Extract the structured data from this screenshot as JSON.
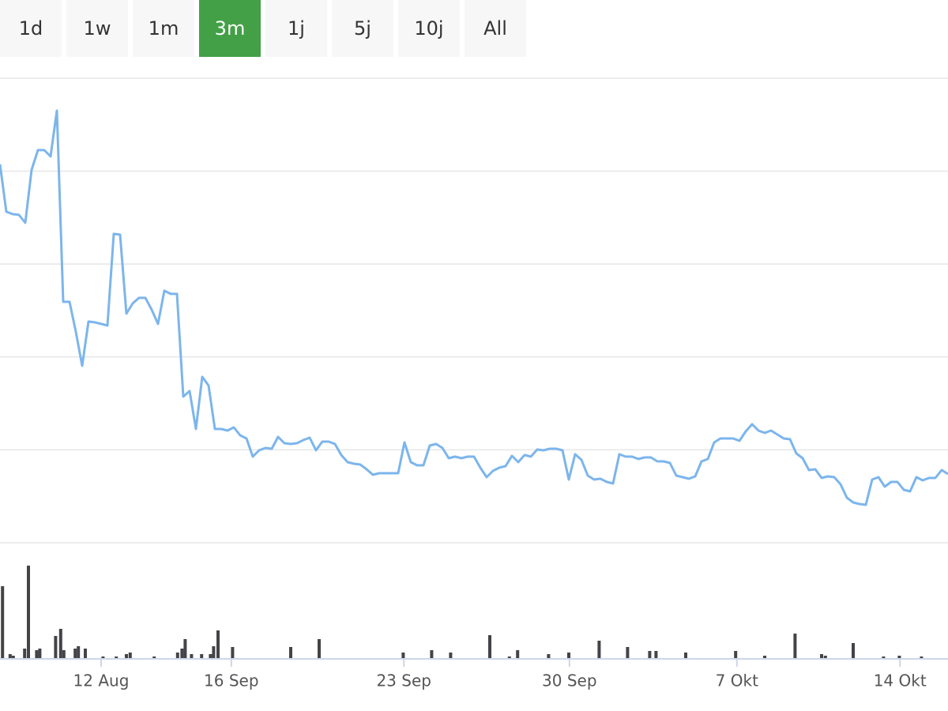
{
  "buttons": [
    "1d",
    "1w",
    "1m",
    "3m",
    "1j",
    "5j",
    "10j",
    "All"
  ],
  "selected_index": 3,
  "chart_data": [
    {
      "type": "line",
      "color": "#7cb5ec",
      "grid": true,
      "ytick_labels": false,
      "xlim": [
        0,
        150
      ],
      "ylim": [
        0,
        588
      ],
      "yticks": [
        0,
        117.6,
        235.2,
        352.8,
        470.4,
        588
      ],
      "values": [
        479,
        419,
        416,
        415,
        405,
        472,
        497,
        497,
        489,
        547,
        305,
        305,
        267,
        224,
        280,
        279,
        277,
        275,
        391,
        390,
        290,
        303,
        310,
        310,
        295,
        277,
        319,
        315,
        315,
        185,
        192,
        144,
        210,
        199,
        144,
        144,
        142,
        146,
        136,
        132,
        109,
        117,
        120,
        119,
        134,
        126,
        125,
        126,
        130,
        133,
        117,
        128,
        128,
        125,
        111,
        102,
        100,
        99,
        93,
        86,
        88,
        88,
        88,
        88,
        127,
        102,
        98,
        98,
        123,
        125,
        120,
        107,
        109,
        107,
        109,
        109,
        95,
        83,
        91,
        95,
        97,
        110,
        102,
        111,
        109,
        118,
        117,
        119,
        119,
        117,
        80,
        112,
        105,
        85,
        80,
        81,
        77,
        75,
        112,
        109,
        109,
        106,
        108,
        108,
        103,
        103,
        101,
        85,
        83,
        81,
        84,
        103,
        106,
        127,
        132,
        132,
        132,
        129,
        141,
        150,
        142,
        139,
        142,
        137,
        132,
        131,
        113,
        107,
        92,
        93,
        82,
        84,
        83,
        74,
        57,
        51,
        49,
        48,
        80,
        83,
        71,
        77,
        77,
        67,
        65,
        83,
        79,
        82,
        82,
        92,
        87
      ]
    },
    {
      "type": "bar",
      "color": "#434348",
      "xlim": [
        0,
        150
      ],
      "ylim": [
        0,
        120
      ],
      "x": [
        0.4,
        1.6,
        2.1,
        3.9,
        4.5,
        5.8,
        6.3,
        8.8,
        9.6,
        10.1,
        11.9,
        12.4,
        13.5,
        16.3,
        18.4,
        20,
        20.6,
        24.4,
        28.1,
        28.8,
        29.3,
        30.3,
        31.9,
        33.3,
        33.8,
        34.5,
        36.8,
        46,
        50.5,
        63.8,
        68.3,
        71.3,
        77.5,
        80.6,
        81.9,
        86.8,
        90,
        94.8,
        99.3,
        102.8,
        103.8,
        108.5,
        116.4,
        121,
        125.8,
        130,
        130.6,
        135,
        139.8,
        142.3,
        145.8
      ],
      "values": [
        91,
        5,
        3,
        12,
        117,
        10,
        12,
        28,
        37,
        10,
        12,
        15,
        12,
        2,
        2,
        5,
        7,
        2,
        7,
        12,
        24,
        5,
        5,
        5,
        15,
        35,
        14,
        14,
        24,
        7,
        10,
        7,
        29,
        2,
        10,
        5,
        7,
        22,
        14,
        9,
        9,
        7,
        9,
        3,
        31,
        5,
        3,
        19,
        2,
        3,
        2
      ],
      "xticks": [
        {
          "value": 16,
          "label": "12 Aug"
        },
        {
          "value": 36.6,
          "label": "16 Sep"
        },
        {
          "value": 63.9,
          "label": "23 Sep"
        },
        {
          "value": 90.1,
          "label": "30 Sep"
        },
        {
          "value": 116.6,
          "label": "7 Okt"
        },
        {
          "value": 142.4,
          "label": "14 Okt"
        }
      ]
    }
  ]
}
